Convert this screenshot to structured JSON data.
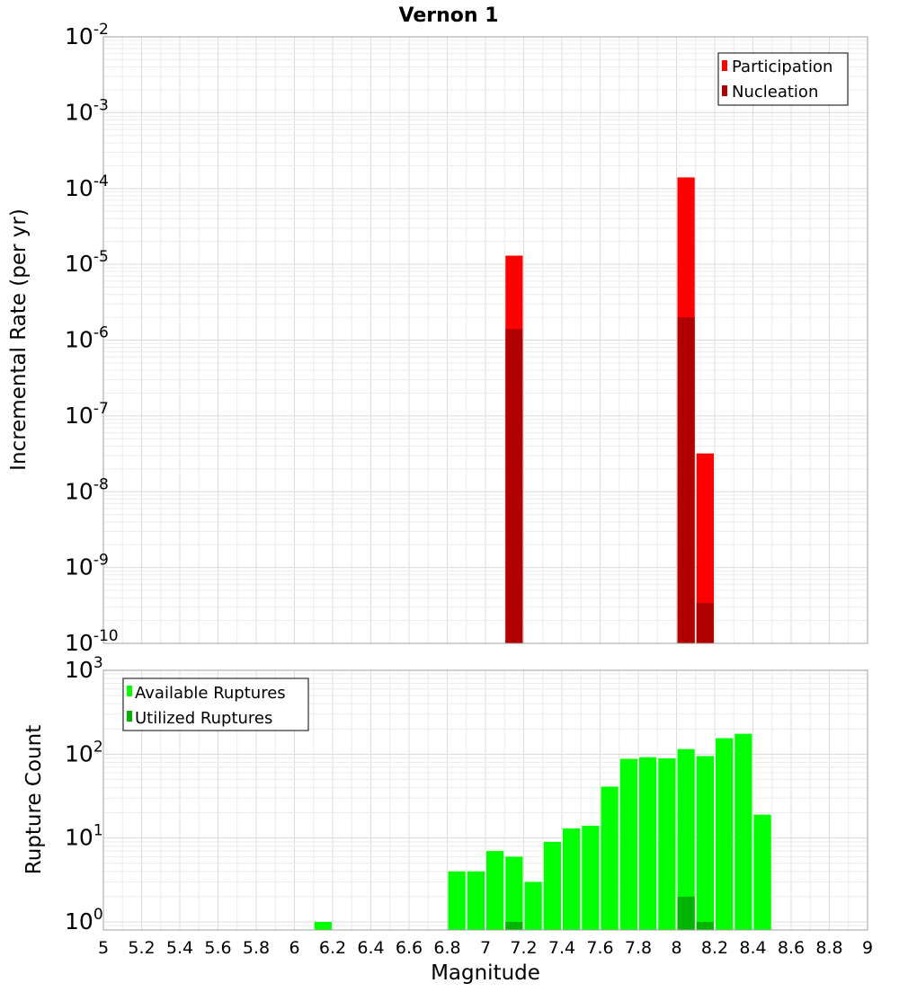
{
  "chart_data": [
    {
      "type": "bar",
      "title": "Vernon 1",
      "ylabel": "Incremental Rate (per yr)",
      "xlabel": "",
      "y_scale": "log",
      "ylim": [
        1e-10,
        0.01
      ],
      "xlim": [
        5,
        9
      ],
      "y_ticks": [
        {
          "base": "10",
          "exp": "-10",
          "value": 1e-10
        },
        {
          "base": "10",
          "exp": "-9",
          "value": 1e-09
        },
        {
          "base": "10",
          "exp": "-8",
          "value": 1e-08
        },
        {
          "base": "10",
          "exp": "-7",
          "value": 1e-07
        },
        {
          "base": "10",
          "exp": "-6",
          "value": 1e-06
        },
        {
          "base": "10",
          "exp": "-5",
          "value": 1e-05
        },
        {
          "base": "10",
          "exp": "-4",
          "value": 0.0001
        },
        {
          "base": "10",
          "exp": "-3",
          "value": 0.001
        },
        {
          "base": "10",
          "exp": "-2",
          "value": 0.01
        }
      ],
      "bin_width": 0.1,
      "grid": true,
      "legend_position": "top-right",
      "series": [
        {
          "name": "Participation",
          "color": "#ff0000",
          "x": [
            7.15,
            8.05,
            8.15
          ],
          "values": [
            1.3e-05,
            0.00014,
            3.2e-08
          ]
        },
        {
          "name": "Nucleation",
          "color": "#b00000",
          "x": [
            7.15,
            8.05,
            8.15
          ],
          "values": [
            1.4e-06,
            2e-06,
            3.4e-10
          ]
        }
      ]
    },
    {
      "type": "bar",
      "title": "",
      "ylabel": "Rupture Count",
      "xlabel": "Magnitude",
      "y_scale": "log",
      "ylim": [
        0.8,
        1000
      ],
      "xlim": [
        5,
        9
      ],
      "y_ticks": [
        {
          "base": "10",
          "exp": "0",
          "value": 1
        },
        {
          "base": "10",
          "exp": "1",
          "value": 10
        },
        {
          "base": "10",
          "exp": "2",
          "value": 100
        },
        {
          "base": "10",
          "exp": "3",
          "value": 1000
        }
      ],
      "x_tick_labels": [
        "5",
        "5.2",
        "5.4",
        "5.6",
        "5.8",
        "6",
        "6.2",
        "6.4",
        "6.6",
        "6.8",
        "7",
        "7.2",
        "7.4",
        "7.6",
        "7.8",
        "8",
        "8.2",
        "8.4",
        "8.6",
        "8.8",
        "9"
      ],
      "bin_width": 0.1,
      "grid": true,
      "legend_position": "top-left",
      "series": [
        {
          "name": "Available Ruptures",
          "color": "#00ff00",
          "x": [
            6.15,
            6.85,
            6.95,
            7.05,
            7.15,
            7.25,
            7.35,
            7.45,
            7.55,
            7.65,
            7.75,
            7.85,
            7.95,
            8.05,
            8.15,
            8.25,
            8.35,
            8.45
          ],
          "values": [
            1,
            4,
            4,
            7,
            6,
            3,
            9,
            13,
            14,
            41,
            88,
            92,
            89,
            115,
            95,
            155,
            175,
            19
          ]
        },
        {
          "name": "Utilized Ruptures",
          "color": "#00b400",
          "x": [
            7.15,
            8.05,
            8.15
          ],
          "values": [
            1,
            2,
            1
          ]
        }
      ]
    }
  ]
}
